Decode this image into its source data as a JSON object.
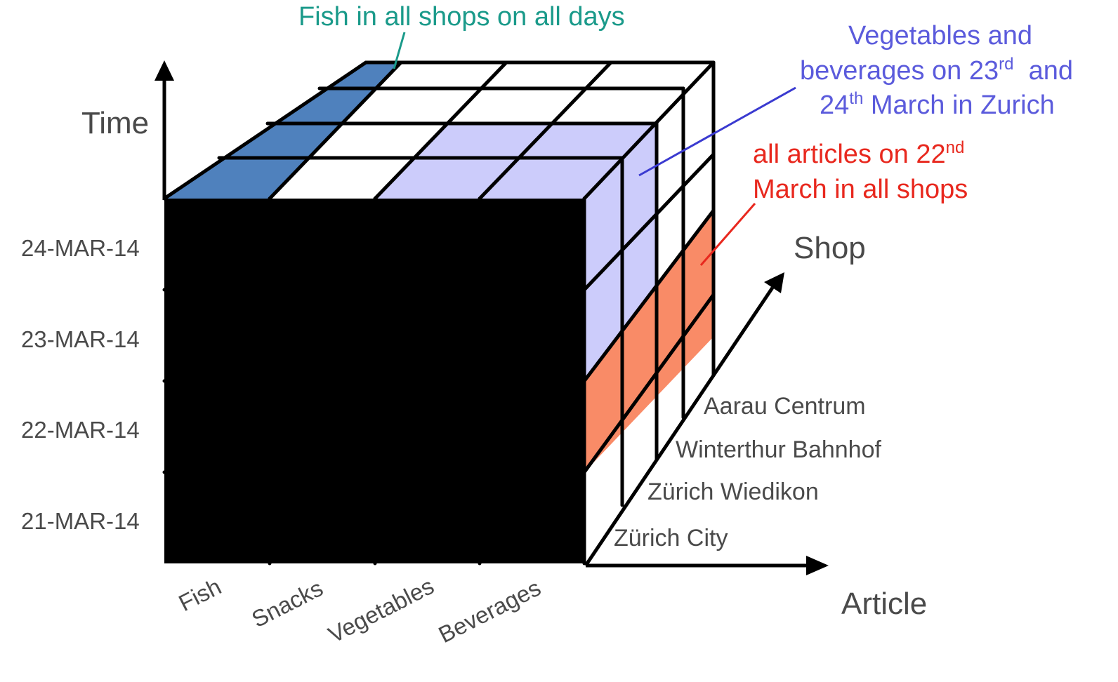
{
  "axes": {
    "time": "Time",
    "shop": "Shop",
    "article": "Article"
  },
  "time_values": [
    "24-MAR-14",
    "23-MAR-14",
    "22-MAR-14",
    "21-MAR-14"
  ],
  "articles": [
    "Fish",
    "Snacks",
    "Vegetables",
    "Beverages"
  ],
  "shops": [
    "Aarau Centrum",
    "Winterthur Bahnhof",
    "Zürich Wiedikon",
    "Zürich City"
  ],
  "annotations": {
    "fish": {
      "text": "Fish in all shops on all days",
      "color": "#1a9a8a"
    },
    "vegetables": {
      "line1": "Vegetables and",
      "line2_main": "beverages on 23",
      "line2_sup": "rd",
      "line2_end": "  and",
      "line3_main": "24",
      "line3_sup": "th",
      "line3_end": " March in Zurich",
      "color": "#5b5bdc"
    },
    "articles22": {
      "line1_main": "all articles on 22",
      "line1_sup": "nd",
      "line2": "March in all shops",
      "color": "#e8281e"
    }
  },
  "colors": {
    "fish": "#4f81bd",
    "lavender": "#ccccfb",
    "salmon": "#f98b67",
    "line": "#000000"
  }
}
